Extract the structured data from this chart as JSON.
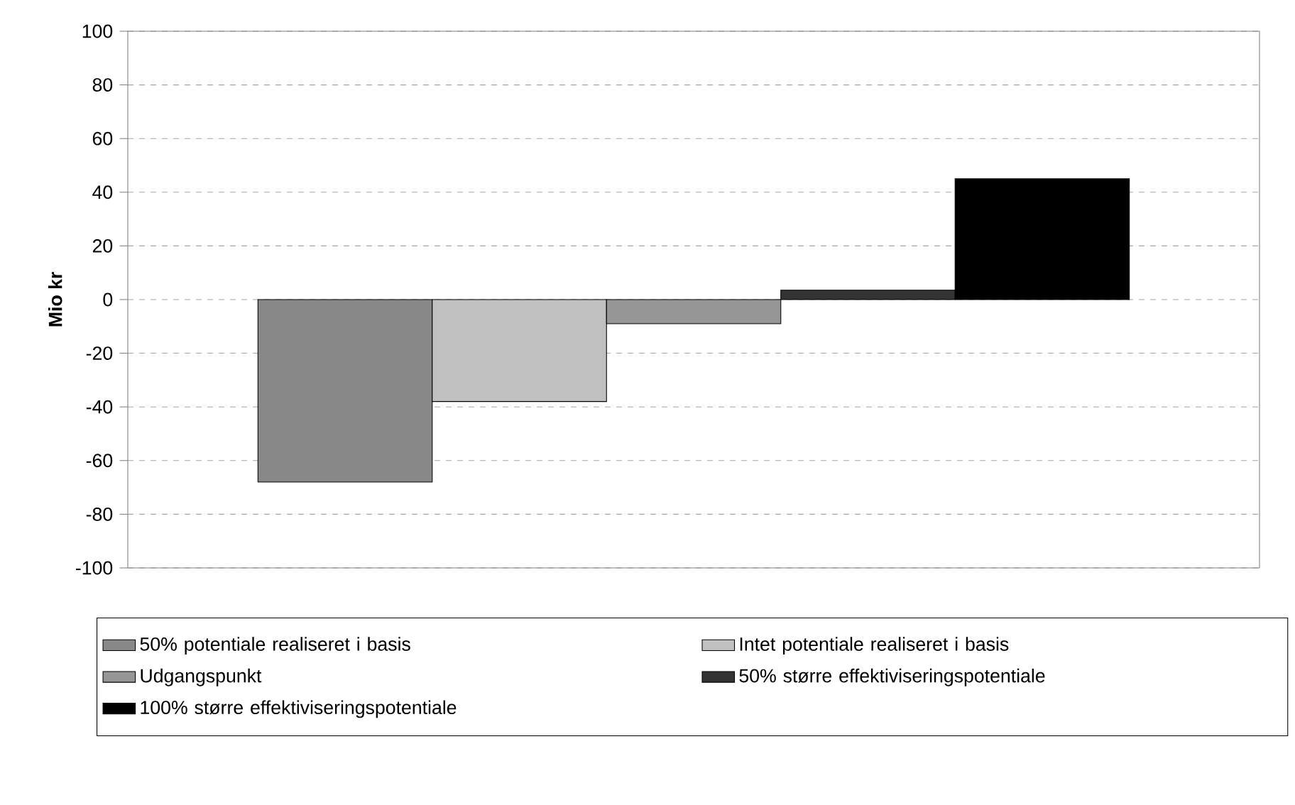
{
  "chart_data": {
    "type": "bar",
    "ylabel": "Mio kr",
    "categories": [
      null
    ],
    "series": [
      {
        "name": "50% potentiale realiseret i basis",
        "color": "#888888",
        "values": [
          -68
        ]
      },
      {
        "name": "Intet potentiale realiseret i basis",
        "color": "#c0c0c0",
        "values": [
          -38
        ]
      },
      {
        "name": "Udgangspunkt",
        "color": "#969696",
        "values": [
          -9
        ]
      },
      {
        "name": "50% større effektiviseringspotentiale",
        "color": "#333333",
        "values": [
          3.5
        ]
      },
      {
        "name": "100% større effektiviseringspotentiale",
        "color": "#000000",
        "values": [
          45
        ]
      }
    ],
    "ylim": [
      -100,
      100
    ],
    "yticks": [
      -100,
      -80,
      -60,
      -40,
      -20,
      0,
      20,
      40,
      60,
      80,
      100
    ],
    "grid": "y",
    "legend": "bottom"
  }
}
